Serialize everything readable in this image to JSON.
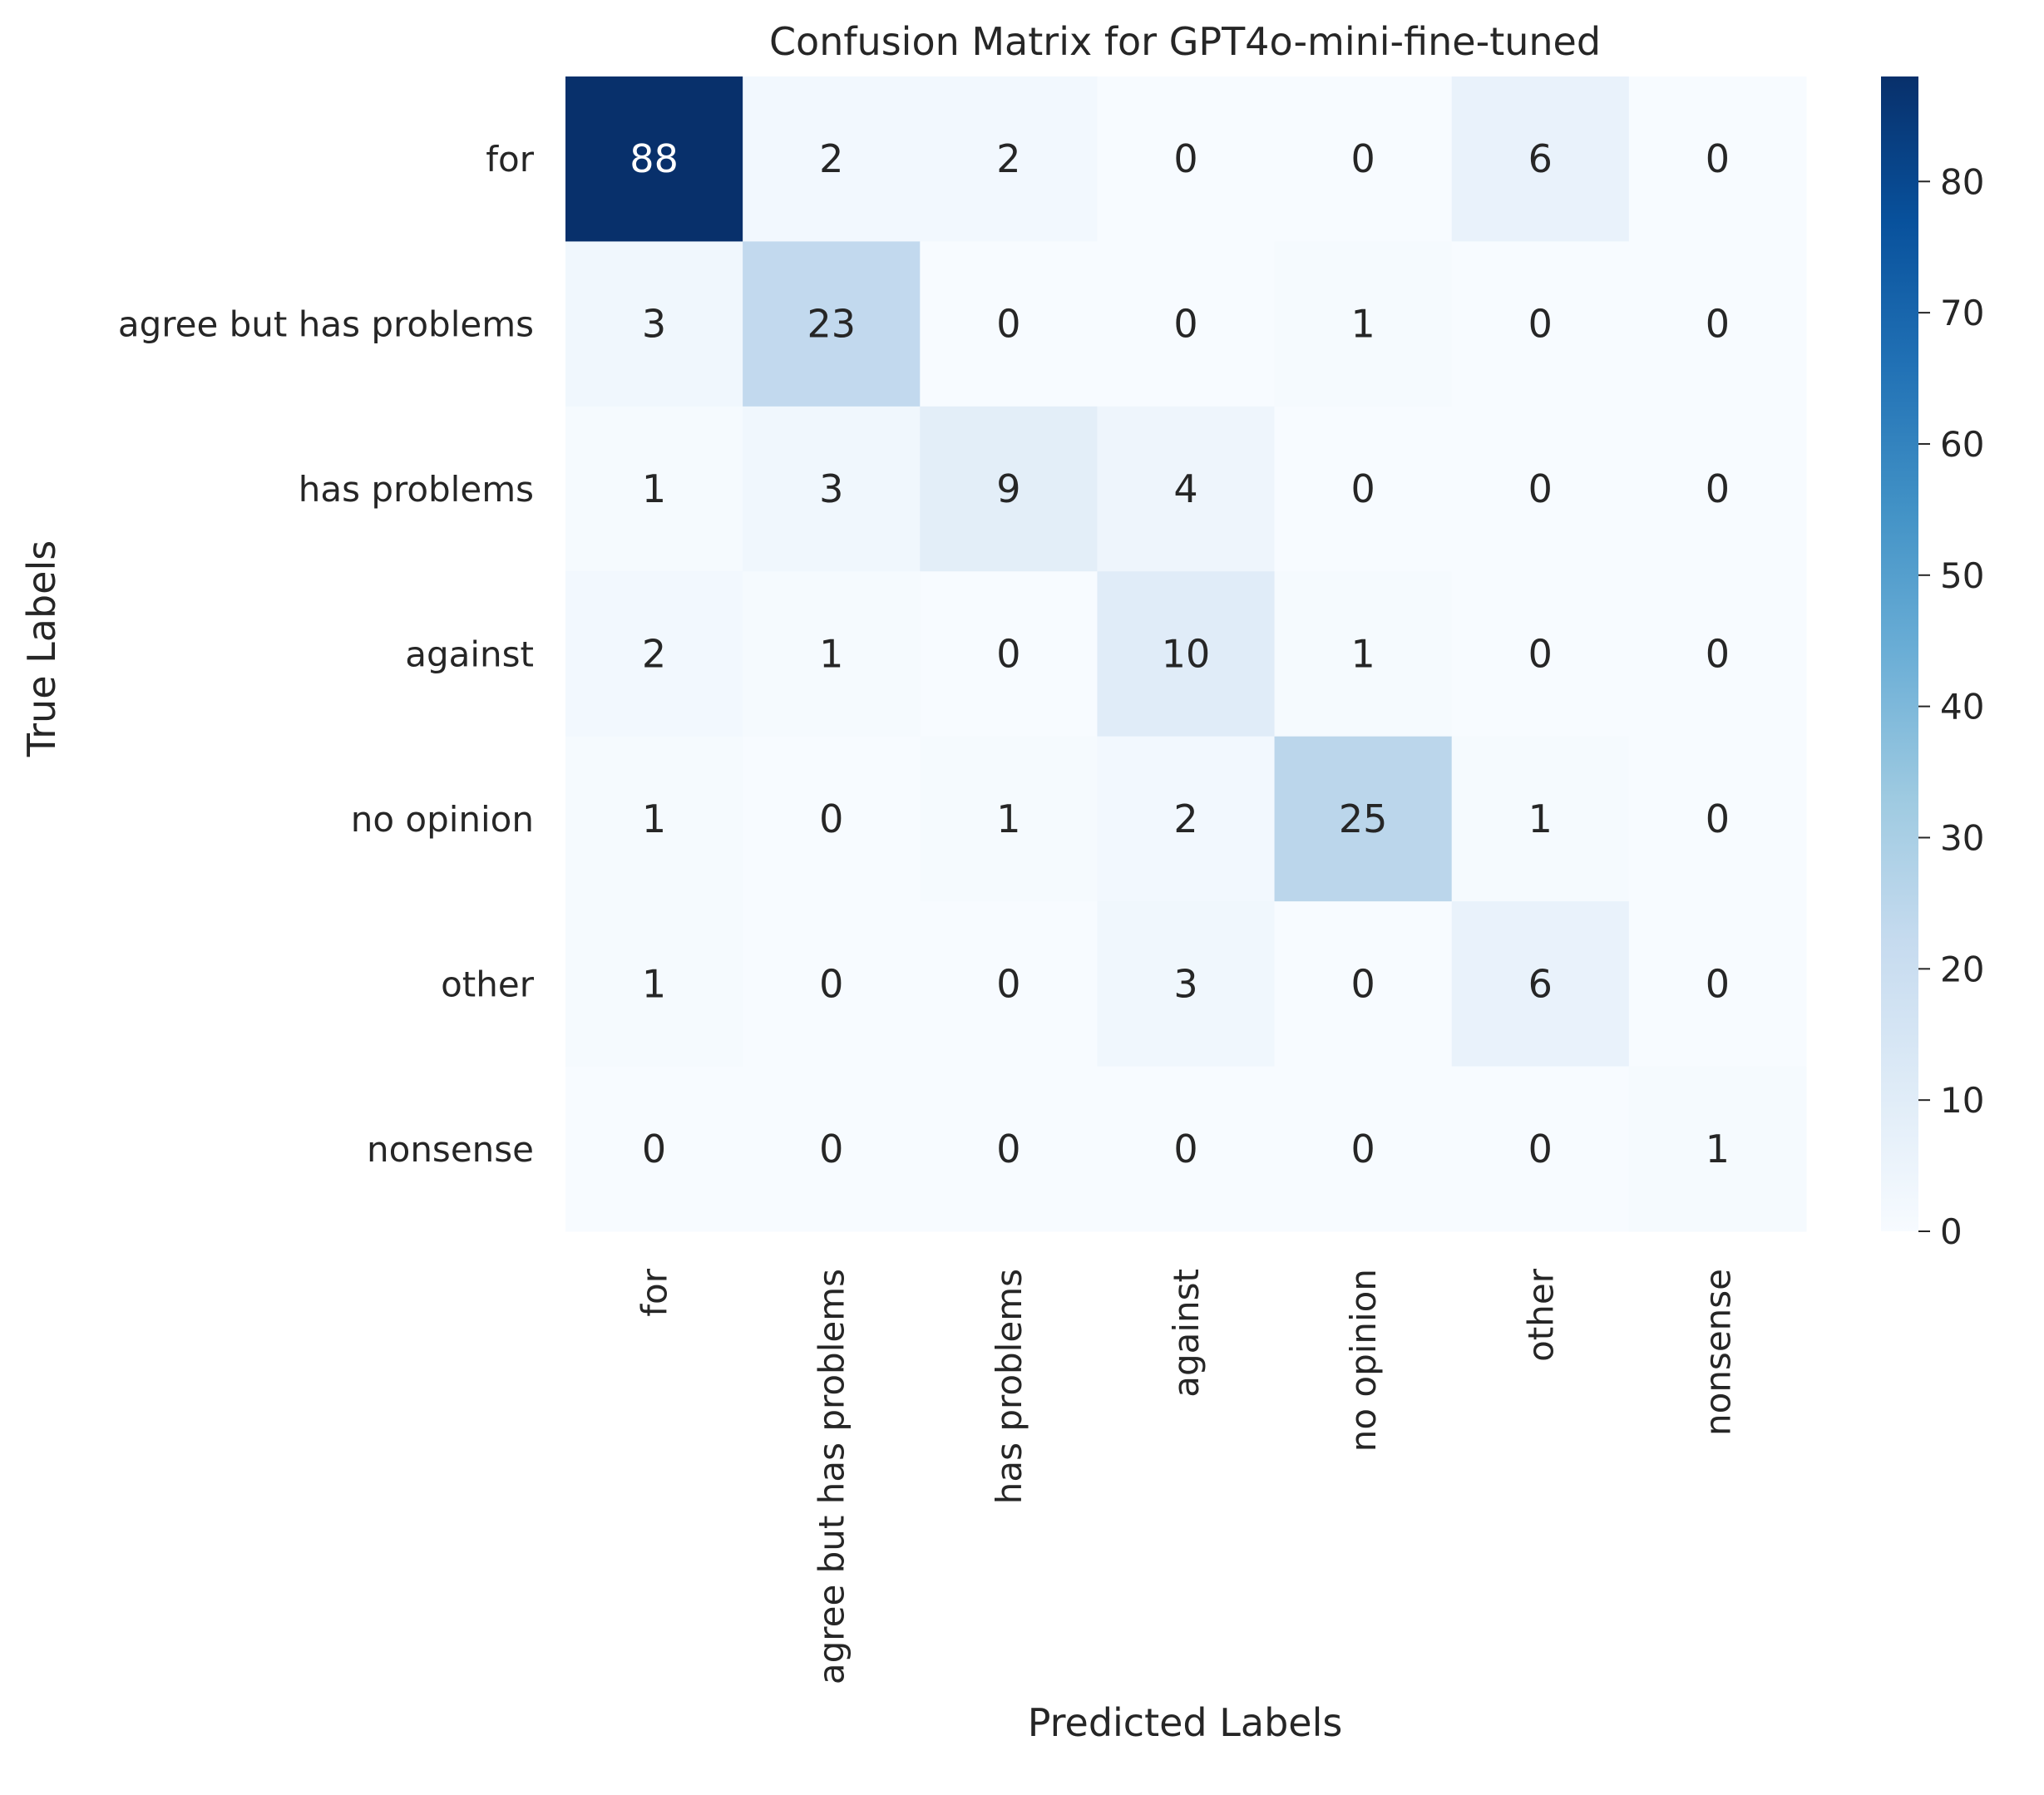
{
  "chart_data": {
    "type": "heatmap",
    "title": "Confusion Matrix for GPT4o-mini-fine-tuned",
    "xlabel": "Predicted Labels",
    "ylabel": "True Labels",
    "x_categories": [
      "for",
      "agree but has problems",
      "has problems",
      "against",
      "no opinion",
      "other",
      "nonsense"
    ],
    "y_categories": [
      "for",
      "agree but has problems",
      "has problems",
      "against",
      "no opinion",
      "other",
      "nonsense"
    ],
    "matrix": [
      [
        88,
        2,
        2,
        0,
        0,
        6,
        0
      ],
      [
        3,
        23,
        0,
        0,
        1,
        0,
        0
      ],
      [
        1,
        3,
        9,
        4,
        0,
        0,
        0
      ],
      [
        2,
        1,
        0,
        10,
        1,
        0,
        0
      ],
      [
        1,
        0,
        1,
        2,
        25,
        1,
        0
      ],
      [
        1,
        0,
        0,
        3,
        0,
        6,
        0
      ],
      [
        0,
        0,
        0,
        0,
        0,
        0,
        1
      ]
    ],
    "colormap": "Blues",
    "colorbar": {
      "range": [
        0,
        88
      ],
      "ticks": [
        0,
        10,
        20,
        30,
        40,
        50,
        60,
        70,
        80
      ]
    },
    "grid": false
  }
}
